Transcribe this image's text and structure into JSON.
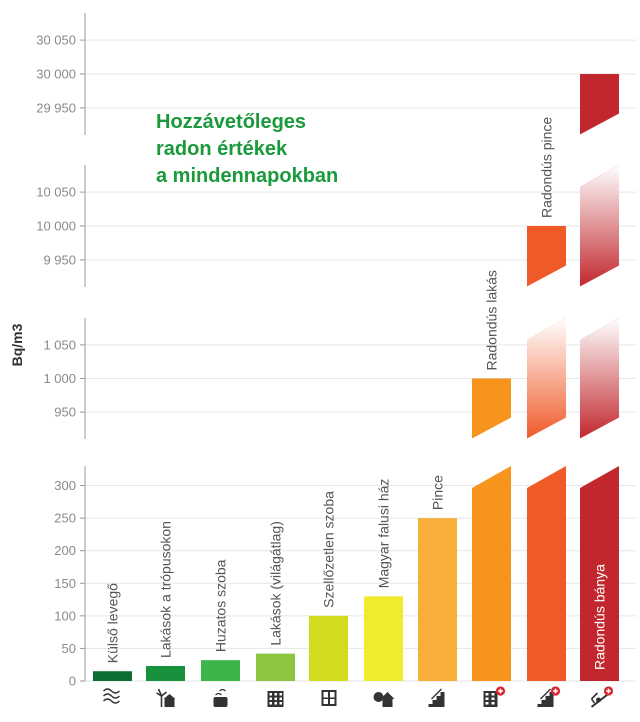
{
  "chart_data": {
    "type": "bar",
    "title": [
      "Hozzávetőleges",
      "radon értékek",
      "a mindennapokban"
    ],
    "ylabel": "Bq/m3",
    "xlabel": "",
    "axis_breaks": true,
    "panels": [
      {
        "range": [
          0,
          330
        ],
        "ticks": [
          0,
          50,
          100,
          150,
          200,
          250,
          300
        ],
        "tick_labels": [
          "0",
          "50",
          "100",
          "150",
          "200",
          "250",
          "300"
        ]
      },
      {
        "range": [
          910,
          1090
        ],
        "ticks": [
          950,
          1000,
          1050
        ],
        "tick_labels": [
          "950",
          "1 000",
          "1 050"
        ]
      },
      {
        "range": [
          9910,
          10090
        ],
        "ticks": [
          9950,
          10000,
          10050
        ],
        "tick_labels": [
          "9 950",
          "10 000",
          "10 050"
        ]
      },
      {
        "range": [
          29910,
          30090
        ],
        "ticks": [
          29950,
          30000,
          30050
        ],
        "tick_labels": [
          "29 950",
          "30 000",
          "30 050"
        ]
      }
    ],
    "categories": [
      "Külső levegő",
      "Lakások a trópusokon",
      "Huzatos szoba",
      "Lakások (világátlag)",
      "Szellőzetlen szoba",
      "Magyar falusi ház",
      "Pince",
      "Radondús lakás",
      "Radondús pince",
      "Radondús bánya"
    ],
    "values": [
      15,
      23,
      32,
      42,
      100,
      130,
      250,
      1000,
      10000,
      30000
    ],
    "colors": [
      "#0b6f33",
      "#17913c",
      "#3cb44a",
      "#8cc63f",
      "#d2dc1f",
      "#f1eb2e",
      "#f7ae3a",
      "#f7941d",
      "#f05a28",
      "#c1272d"
    ],
    "icons": [
      "wind-icon",
      "palm-house-icon",
      "draft-room-icon",
      "apartment-icon",
      "window-icon",
      "village-house-icon",
      "stairs-icon",
      "radon-apartment-icon",
      "radon-stairs-icon",
      "mine-icon"
    ]
  }
}
